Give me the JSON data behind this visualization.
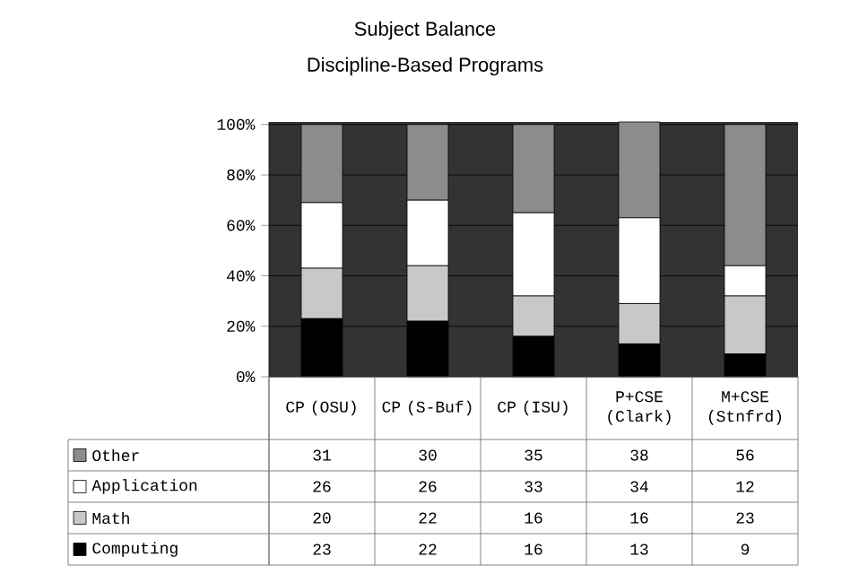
{
  "chart_data": {
    "type": "bar",
    "stacked": true,
    "title": "Subject Balance",
    "subtitle": "Discipline-Based Programs",
    "categories": [
      "CP (OSU)",
      "CP (S-Buf)",
      "CP (ISU)",
      "P+CSE (Clark)",
      "M+CSE (Stnfrd)"
    ],
    "series": [
      {
        "name": "Computing",
        "color": "#000000",
        "values": [
          23,
          22,
          16,
          13,
          9
        ]
      },
      {
        "name": "Math",
        "color": "#c8c8c8",
        "values": [
          20,
          22,
          16,
          16,
          23
        ]
      },
      {
        "name": "Application",
        "color": "#ffffff",
        "values": [
          26,
          26,
          33,
          34,
          12
        ]
      },
      {
        "name": "Other",
        "color": "#8c8c8c",
        "values": [
          31,
          30,
          35,
          38,
          56
        ]
      }
    ],
    "ylim": [
      0,
      101
    ],
    "yticks": [
      {
        "value": 0,
        "label": "0%"
      },
      {
        "value": 20,
        "label": "20%"
      },
      {
        "value": 40,
        "label": "40%"
      },
      {
        "value": 60,
        "label": "60%"
      },
      {
        "value": 80,
        "label": "80%"
      },
      {
        "value": 100,
        "label": "100%"
      }
    ],
    "grid": "y",
    "legend": "bottom",
    "data_labels": true
  }
}
